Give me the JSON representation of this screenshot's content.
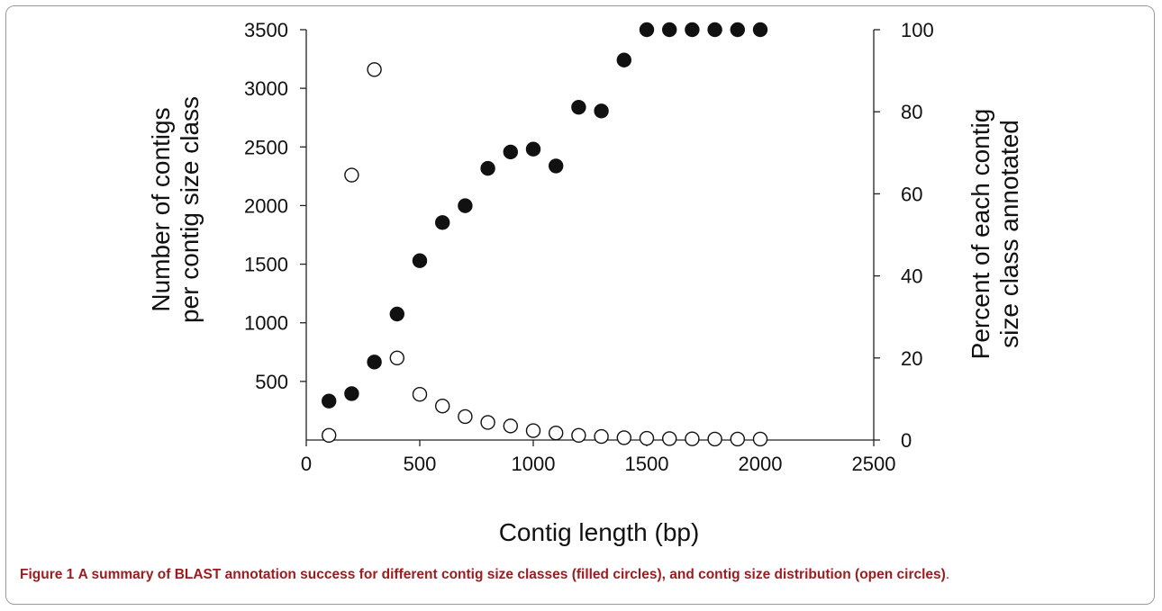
{
  "caption": {
    "label": "Figure 1",
    "text": "A summary of BLAST annotation success for different contig size classes (filled circles), and contig size distribution (open circles)",
    "end": "."
  },
  "chart_data": {
    "type": "scatter",
    "xlabel": "Contig length (bp)",
    "ylabel_left": [
      "Number of contigs",
      "per contig size class"
    ],
    "ylabel_right": [
      "Percent of each contig",
      "size class annotated"
    ],
    "xlim": [
      0,
      2500
    ],
    "ylim_left": [
      0,
      3500
    ],
    "ylim_right": [
      0,
      100
    ],
    "x_ticks": [
      0,
      500,
      1000,
      1500,
      2000,
      2500
    ],
    "y_left_ticks": [
      500,
      1000,
      1500,
      2000,
      2500,
      3000,
      3500
    ],
    "y_right_ticks": [
      0,
      20,
      40,
      60,
      80,
      100
    ],
    "grid": false,
    "series": [
      {
        "marker": "filled",
        "axis": "right",
        "x": [
          100,
          200,
          300,
          400,
          500,
          600,
          700,
          800,
          900,
          1000,
          1100,
          1200,
          1300,
          1400,
          1500,
          1600,
          1700,
          1800,
          1900,
          2000
        ],
        "values": [
          9.5,
          11.3,
          19,
          30.7,
          43.7,
          53,
          57.1,
          66.2,
          70.2,
          70.9,
          66.8,
          81.1,
          80.2,
          92.6,
          100,
          100,
          100,
          100,
          100,
          100
        ]
      },
      {
        "marker": "open",
        "axis": "left",
        "x": [
          100,
          200,
          300,
          400,
          500,
          600,
          700,
          800,
          900,
          1000,
          1100,
          1200,
          1300,
          1400,
          1500,
          1600,
          1700,
          1800,
          1900,
          2000
        ],
        "values": [
          40,
          2260,
          3160,
          700,
          390,
          290,
          200,
          150,
          120,
          80,
          60,
          40,
          30,
          20,
          15,
          12,
          10,
          8,
          8,
          8
        ]
      }
    ]
  }
}
